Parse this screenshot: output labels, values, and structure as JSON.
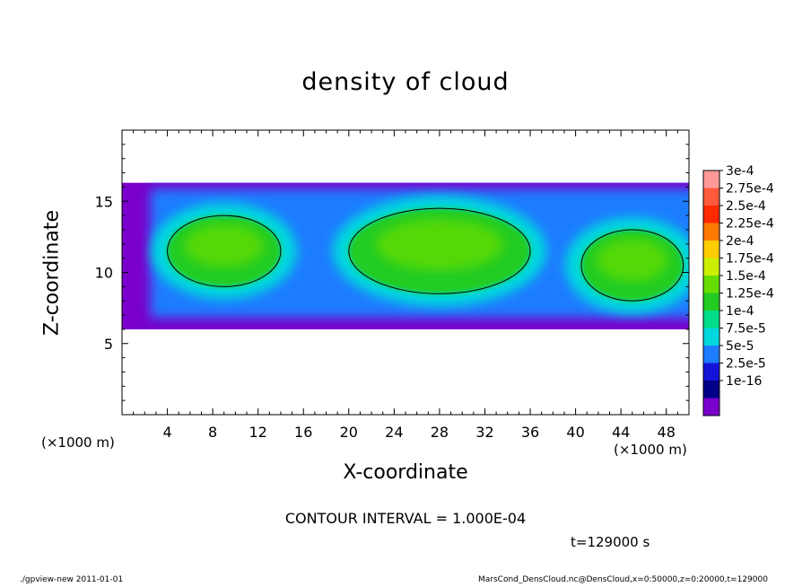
{
  "chart_data": {
    "type": "heatmap",
    "title": "density of cloud",
    "xlabel": "X-coordinate",
    "ylabel": "Z-coordinate",
    "x_unit": "(×1000 m)",
    "y_unit": "(×1000 m)",
    "xlim": [
      0,
      50
    ],
    "ylim": [
      0,
      20
    ],
    "x_ticks": [
      4,
      8,
      12,
      16,
      20,
      24,
      28,
      32,
      36,
      40,
      44,
      48
    ],
    "y_ticks": [
      5,
      10,
      15
    ],
    "colorbar": {
      "labels": [
        "3e-4",
        "2.75e-4",
        "2.5e-4",
        "2.25e-4",
        "2e-4",
        "1.75e-4",
        "1.5e-4",
        "1.25e-4",
        "1e-4",
        "7.5e-5",
        "5e-5",
        "2.5e-5",
        "1e-16"
      ],
      "colors": [
        "#ff9999",
        "#ff5a3c",
        "#ff2a00",
        "#ff7a00",
        "#ffcc00",
        "#ccee00",
        "#66dd00",
        "#22cc22",
        "#00dd88",
        "#00d8dd",
        "#1e7cff",
        "#1414d8",
        "#000088",
        "#7a00cc"
      ]
    },
    "contour_interval": "CONTOUR INTERVAL = 1.000E-04",
    "time_label": "t=129000 s",
    "cloud_band_z": [
      6,
      16.3
    ],
    "cloud_regions": [
      {
        "level": "1e-4",
        "x_center": 9,
        "z_center": 11.5,
        "x_halfwidth": 5,
        "z_halfwidth": 2.5
      },
      {
        "level": "1e-4",
        "x_center": 28,
        "z_center": 11.5,
        "x_halfwidth": 8,
        "z_halfwidth": 3
      },
      {
        "level": "1e-4",
        "x_center": 45,
        "z_center": 10.5,
        "x_halfwidth": 4.5,
        "z_halfwidth": 2.5
      }
    ]
  },
  "footer": {
    "left": "./gpview-new   2011-01-01",
    "right": "MarsCond_DensCloud.nc@DensCloud,x=0:50000,z=0:20000,t=129000"
  }
}
